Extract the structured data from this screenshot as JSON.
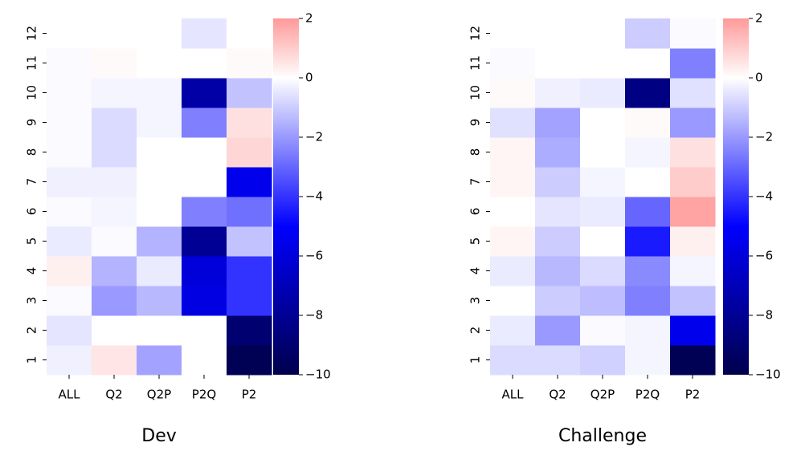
{
  "chart_data": [
    {
      "type": "heatmap",
      "title": "Dev",
      "colormap": "seismic",
      "vlim": [
        -10,
        10
      ],
      "categories": [
        "ALL",
        "Q2",
        "Q2P",
        "P2Q",
        "P2"
      ],
      "y": [
        "1",
        "2",
        "3",
        "4",
        "5",
        "6",
        "7",
        "8",
        "9",
        "10",
        "11",
        "12"
      ],
      "values": [
        [
          -0.3,
          0.5,
          -1.8,
          0,
          -9.8
        ],
        [
          -0.5,
          0,
          0,
          0,
          -9.0
        ],
        [
          -0.1,
          -2.0,
          -1.4,
          -5.8,
          -4.0
        ],
        [
          0.3,
          -1.5,
          -0.4,
          -6.0,
          -4.0
        ],
        [
          -0.4,
          -0.1,
          -1.5,
          -8.0,
          -1.2
        ],
        [
          -0.1,
          -0.2,
          0,
          -2.5,
          -2.8
        ],
        [
          -0.3,
          -0.3,
          0,
          0,
          -5.5
        ],
        [
          -0.1,
          -0.7,
          0,
          0,
          0.8
        ],
        [
          -0.1,
          -0.7,
          -0.2,
          -2.5,
          0.6
        ],
        [
          -0.1,
          -0.2,
          -0.2,
          -7.5,
          -1.2
        ],
        [
          -0.1,
          0.1,
          0,
          0,
          0.1
        ],
        [
          0,
          0,
          0,
          -0.5,
          0
        ]
      ],
      "clim": [
        -10,
        2
      ],
      "cticks": [
        {
          "value": -10,
          "label": "−10"
        },
        {
          "value": -8,
          "label": "−8"
        },
        {
          "value": -6,
          "label": "−6"
        },
        {
          "value": -4,
          "label": "−4"
        },
        {
          "value": -2,
          "label": "−2"
        },
        0,
        2
      ]
    },
    {
      "type": "heatmap",
      "title": "Challenge",
      "colormap": "seismic",
      "vlim": [
        -10,
        10
      ],
      "categories": [
        "ALL",
        "Q2",
        "Q2P",
        "P2Q",
        "P2"
      ],
      "y": [
        "1",
        "2",
        "3",
        "4",
        "5",
        "6",
        "7",
        "8",
        "9",
        "10",
        "11",
        "12"
      ],
      "values": [
        [
          -0.7,
          -0.7,
          -0.9,
          -0.2,
          -9.8
        ],
        [
          -0.4,
          -2.0,
          -0.1,
          -0.2,
          -5.5
        ],
        [
          0,
          -1.0,
          -1.3,
          -2.5,
          -1.2
        ],
        [
          -0.4,
          -1.4,
          -0.7,
          -2.3,
          -0.2
        ],
        [
          0.2,
          -1.0,
          0,
          -4.5,
          0.3
        ],
        [
          0,
          -0.5,
          -0.4,
          -3.0,
          1.8
        ],
        [
          0.2,
          -1.0,
          -0.2,
          0,
          1.0
        ],
        [
          0.2,
          -1.6,
          0,
          -0.2,
          0.6
        ],
        [
          -0.6,
          -1.8,
          0,
          0.1,
          -2.0
        ],
        [
          0.1,
          -0.3,
          -0.4,
          -8.5,
          -0.6
        ],
        [
          -0.1,
          0,
          0,
          0,
          -2.5
        ],
        [
          0,
          0,
          0,
          -1,
          -0.1
        ]
      ],
      "clim": [
        -10,
        2
      ],
      "cticks": [
        {
          "value": -10,
          "label": "−10"
        },
        {
          "value": -8,
          "label": "−8"
        },
        {
          "value": -6,
          "label": "−6"
        },
        {
          "value": -4,
          "label": "−4"
        },
        {
          "value": -2,
          "label": "−2"
        },
        0,
        2
      ]
    }
  ]
}
